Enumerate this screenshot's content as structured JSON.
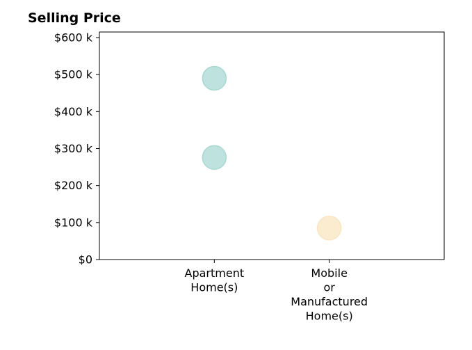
{
  "chart_data": {
    "type": "scatter",
    "title": "Selling Price",
    "xlabel": "",
    "ylabel": "",
    "categories": [
      [
        "Apartment",
        "Home(s)"
      ],
      [
        "Mobile",
        "or",
        "Manufactured",
        "Home(s)"
      ]
    ],
    "ylim": [
      0,
      615
    ],
    "yticks": [
      {
        "value": 0,
        "label": "$0"
      },
      {
        "value": 100,
        "label": "$100 k"
      },
      {
        "value": 200,
        "label": "$200 k"
      },
      {
        "value": 300,
        "label": "$300 k"
      },
      {
        "value": 400,
        "label": "$400 k"
      },
      {
        "value": 500,
        "label": "$500 k"
      },
      {
        "value": 600,
        "label": "$600 k"
      }
    ],
    "points": [
      {
        "category": 0,
        "value": 490,
        "color": "#a8d8d2"
      },
      {
        "category": 0,
        "value": 276,
        "color": "#a8d8d2"
      },
      {
        "category": 1,
        "value": 85,
        "color": "#f9e6c0"
      }
    ],
    "grid": false,
    "legend": "none"
  }
}
